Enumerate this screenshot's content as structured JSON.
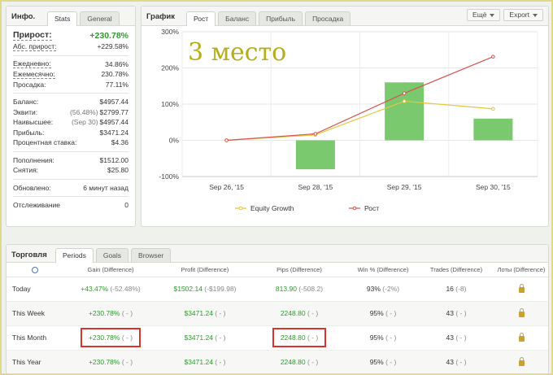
{
  "info": {
    "title": "Инфо.",
    "tabs": [
      "Stats",
      "General"
    ],
    "growth_label": "Прирост:",
    "growth_value": "+230.78%",
    "abs_label": "Абс. прирост:",
    "abs_value": "+229.58%",
    "daily_label": "Ежедневно:",
    "daily_value": "34.86%",
    "monthly_label": "Ежемесячно:",
    "monthly_value": "230.78%",
    "drawdown_label": "Просадка:",
    "drawdown_value": "77.11%",
    "balance_label": "Баланс:",
    "balance_value": "$4957.44",
    "equity_label": "Эквити:",
    "equity_pct": "(56.48%)",
    "equity_value": "$2799.77",
    "highest_label": "Наивысшее:",
    "highest_date": "(Sep 30)",
    "highest_value": "$4957.44",
    "profit_label": "Прибыль:",
    "profit_value": "$3471.24",
    "interest_label": "Процентная ставка:",
    "interest_value": "$4.36",
    "deposits_label": "Пополнения:",
    "deposits_value": "$1512.00",
    "withdrawals_label": "Снятия:",
    "withdrawals_value": "$25.80",
    "updated_label": "Обновлено:",
    "updated_value": "6 минут назад",
    "tracking_label": "Отслеживание",
    "tracking_value": "0"
  },
  "chart_panel": {
    "title": "График",
    "tabs": [
      "Рост",
      "Баланс",
      "Прибыль",
      "Просадка"
    ],
    "more_label": "Ещё",
    "export_label": "Export",
    "annotation": "3 место"
  },
  "chart_data": {
    "type": "bar+line",
    "categories": [
      "Sep 26, '15",
      "Sep 28, '15",
      "Sep 29, '15",
      "Sep 30, '15"
    ],
    "ylim": [
      -100,
      300
    ],
    "yticks": [
      -100,
      0,
      100,
      200,
      300
    ],
    "ytick_labels": [
      "-100%",
      "0%",
      "100%",
      "200%",
      "300%"
    ],
    "grid": true,
    "legend_position": "bottom",
    "bars": [
      0,
      -80,
      160,
      60
    ],
    "series": [
      {
        "name": "Equity Growth",
        "color": "#e8c53a",
        "values": [
          0,
          15,
          108,
          87
        ]
      },
      {
        "name": "Рост",
        "color": "#d9534f",
        "values": [
          0,
          18,
          130,
          231
        ]
      }
    ],
    "bar_color": "#7bc96f"
  },
  "trading": {
    "title": "Торговля",
    "tabs": [
      "Periods",
      "Goals",
      "Browser"
    ],
    "columns": [
      "Gain (Difference)",
      "Profit (Difference)",
      "Pips (Difference)",
      "Win % (Difference)",
      "Trades (Difference)",
      "Лоты (Difference)"
    ],
    "rows": [
      {
        "period": "Today",
        "gain": "+43.47%",
        "gain_diff": "(-52.48%)",
        "profit": "$1502.14",
        "profit_diff": "(-$199.98)",
        "pips": "813.90",
        "pips_diff": "(-508.2)",
        "win": "93%",
        "win_diff": "(-2%)",
        "trades": "16",
        "trades_diff": "(-8)"
      },
      {
        "period": "This Week",
        "gain": "+230.78%",
        "gain_diff": "( - )",
        "profit": "$3471.24",
        "profit_diff": "( - )",
        "pips": "2248.80",
        "pips_diff": "( - )",
        "win": "95%",
        "win_diff": "( - )",
        "trades": "43",
        "trades_diff": "( - )"
      },
      {
        "period": "This Month",
        "gain": "+230.78%",
        "gain_diff": "( - )",
        "profit": "$3471.24",
        "profit_diff": "( - )",
        "pips": "2248.80",
        "pips_diff": "( - )",
        "win": "95%",
        "win_diff": "( - )",
        "trades": "43",
        "trades_diff": "( - )"
      },
      {
        "period": "This Year",
        "gain": "+230.78%",
        "gain_diff": "( - )",
        "profit": "$3471.24",
        "profit_diff": "( - )",
        "pips": "2248.80",
        "pips_diff": "( - )",
        "win": "95%",
        "win_diff": "( - )",
        "trades": "43",
        "trades_diff": "( - )"
      }
    ],
    "icons": {
      "header": "info-icon",
      "lots": "lock-icon"
    }
  }
}
